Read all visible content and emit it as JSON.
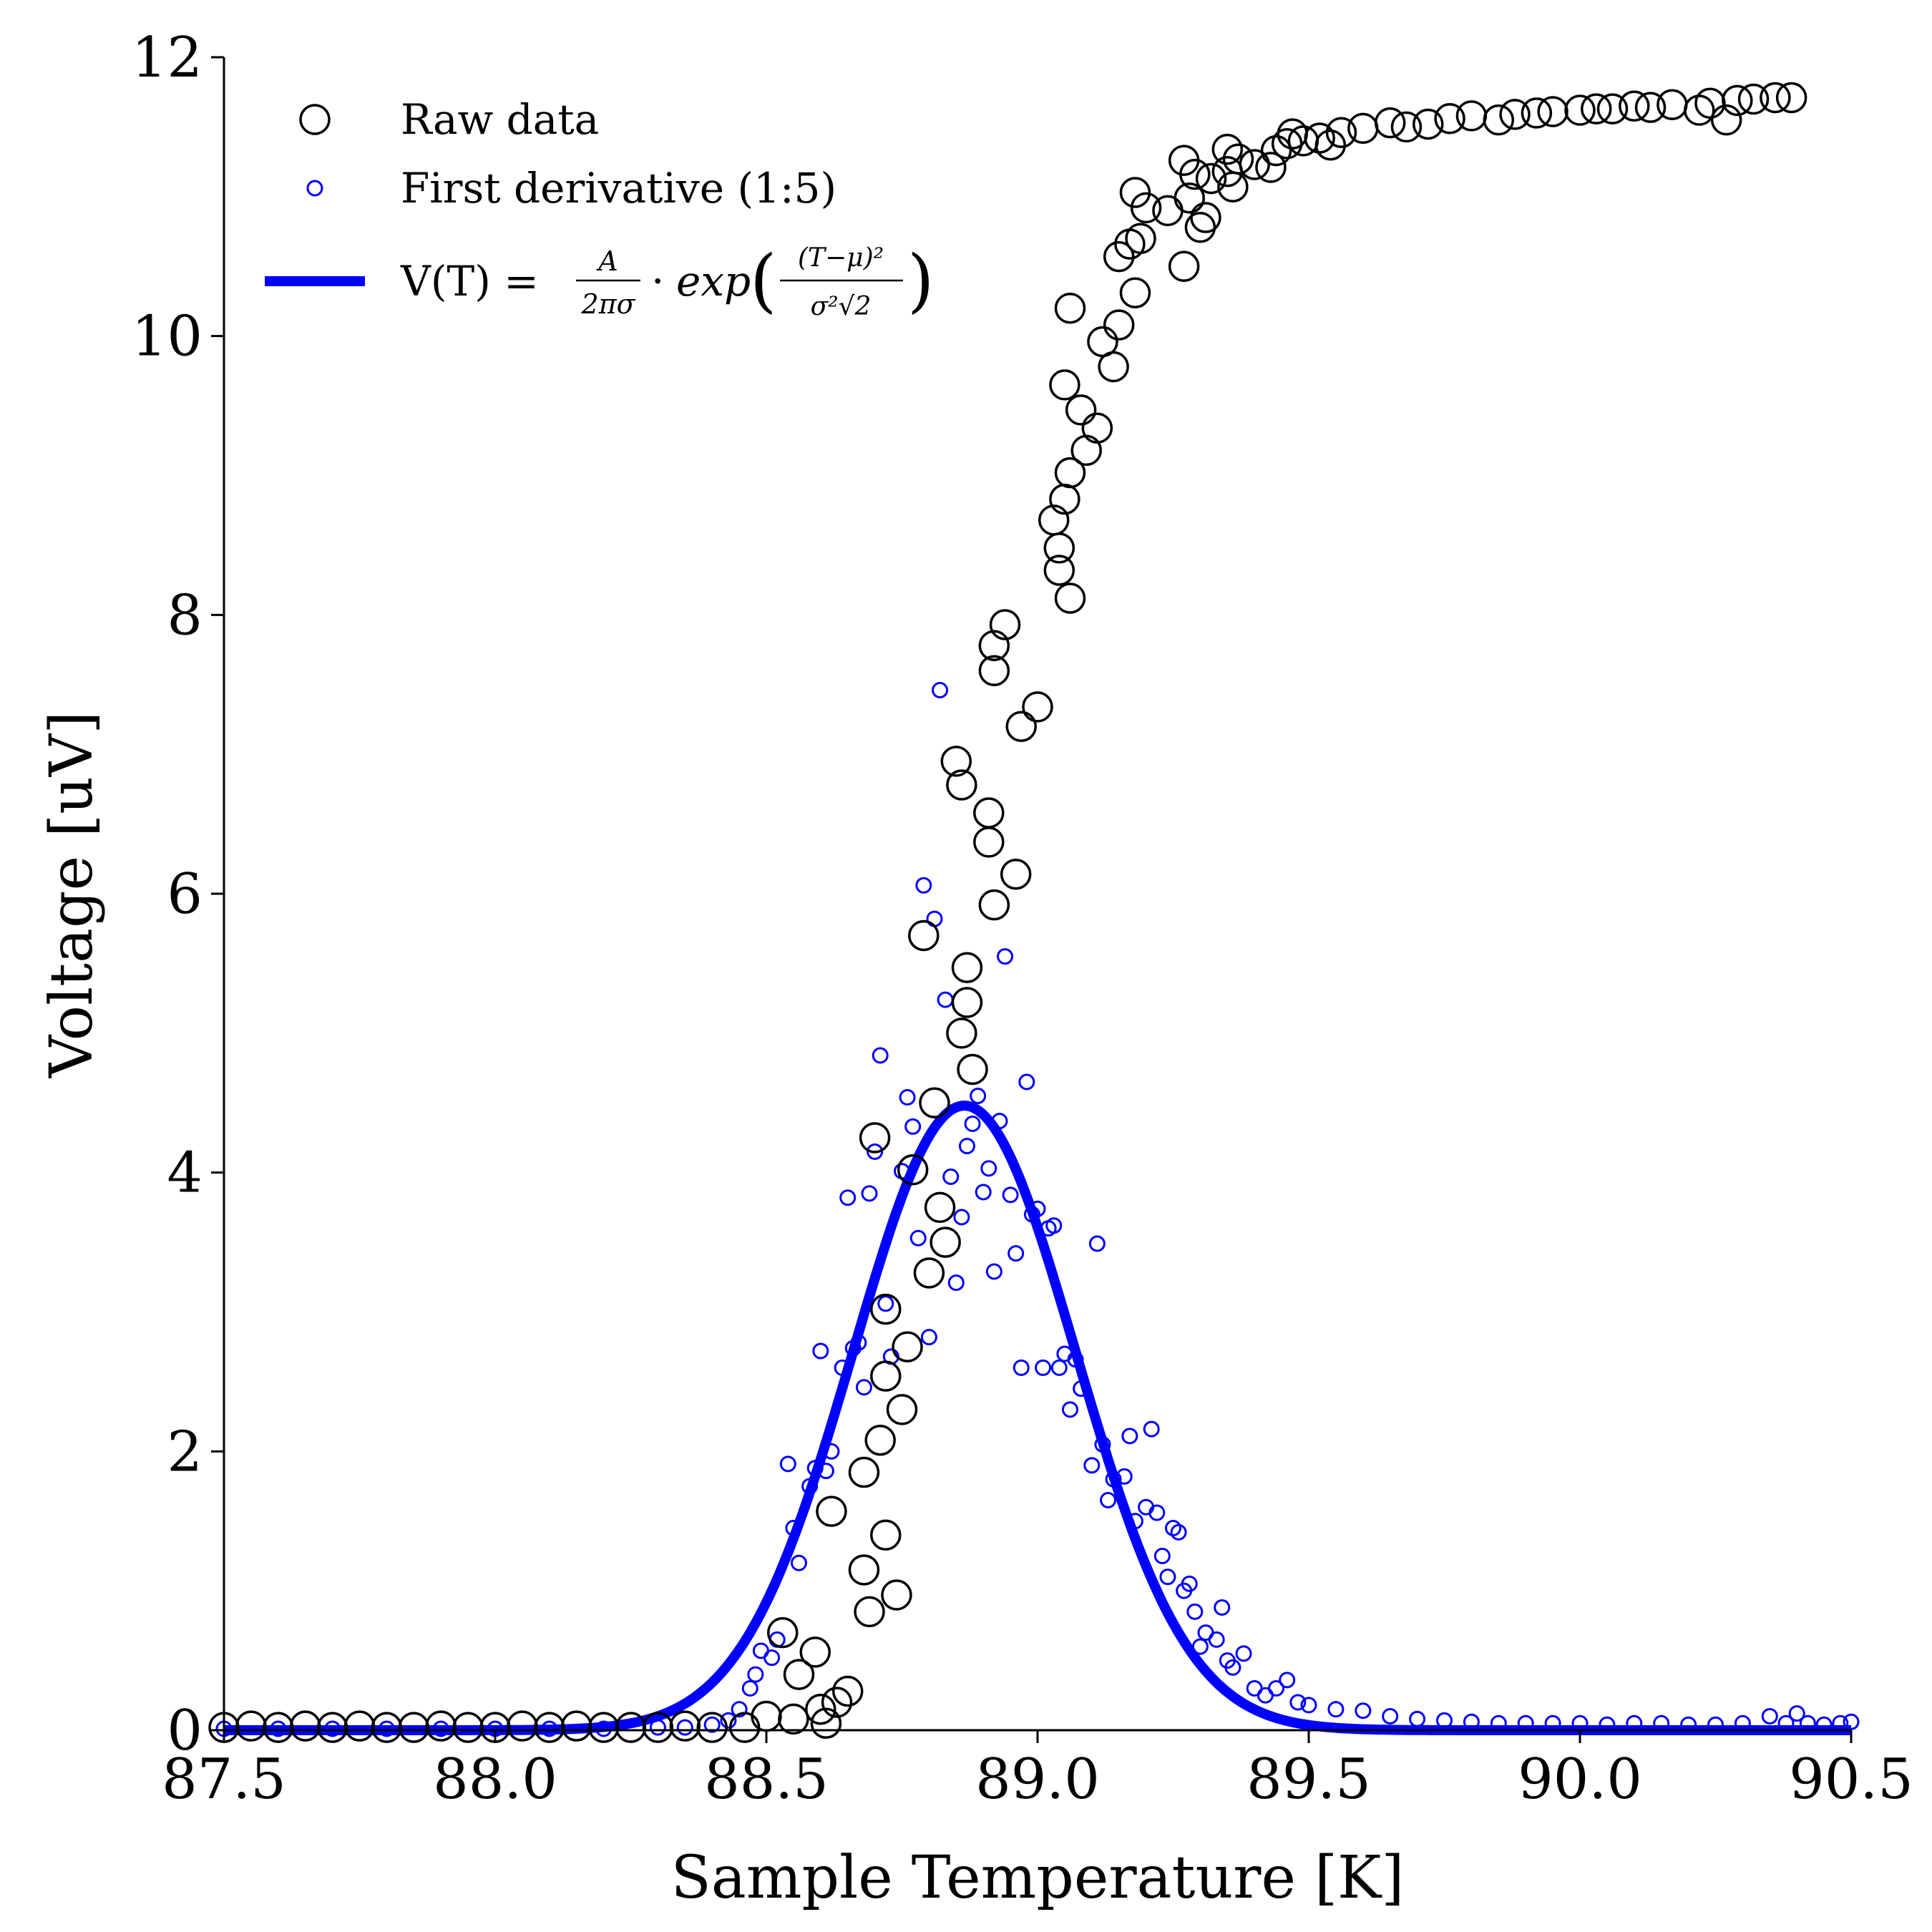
{
  "chart_data": {
    "type": "scatter",
    "xlabel": "Sample Temperature [K]",
    "ylabel": "Voltage [uV]",
    "xlim": [
      87.5,
      90.5
    ],
    "ylim": [
      0,
      12
    ],
    "x_ticks": [
      "87.5",
      "88.0",
      "88.5",
      "89.0",
      "89.5",
      "90.0",
      "90.5"
    ],
    "y_ticks": [
      "0",
      "2",
      "4",
      "6",
      "8",
      "10",
      "12"
    ],
    "grid": false,
    "legend_position": "top-left",
    "colors": {
      "raw": "#000000",
      "derivative": "#0000ff",
      "fit": "#0000ff"
    },
    "series": [
      {
        "name": "Raw data",
        "type": "scatter",
        "marker": "open-circle-large",
        "points": [
          [
            87.5,
            0.02
          ],
          [
            87.55,
            0.03
          ],
          [
            87.6,
            0.02
          ],
          [
            87.65,
            0.03
          ],
          [
            87.7,
            0.02
          ],
          [
            87.75,
            0.03
          ],
          [
            87.8,
            0.02
          ],
          [
            87.85,
            0.02
          ],
          [
            87.9,
            0.03
          ],
          [
            87.95,
            0.02
          ],
          [
            88.0,
            0.02
          ],
          [
            88.05,
            0.03
          ],
          [
            88.1,
            0.02
          ],
          [
            88.15,
            0.03
          ],
          [
            88.2,
            0.02
          ],
          [
            88.25,
            0.02
          ],
          [
            88.3,
            0.02
          ],
          [
            88.35,
            0.03
          ],
          [
            88.4,
            0.02
          ],
          [
            88.46,
            0.02
          ],
          [
            88.5,
            0.1
          ],
          [
            88.53,
            0.7
          ],
          [
            88.55,
            0.08
          ],
          [
            88.56,
            0.4
          ],
          [
            88.59,
            0.56
          ],
          [
            88.6,
            0.15
          ],
          [
            88.61,
            0.05
          ],
          [
            88.63,
            0.2
          ],
          [
            88.65,
            0.28
          ],
          [
            88.62,
            1.57
          ],
          [
            88.68,
            1.85
          ],
          [
            88.68,
            1.15
          ],
          [
            88.69,
            0.85
          ],
          [
            88.7,
            4.25
          ],
          [
            88.71,
            2.08
          ],
          [
            88.72,
            3.02
          ],
          [
            88.72,
            2.54
          ],
          [
            88.72,
            1.4
          ],
          [
            88.74,
            0.97
          ],
          [
            88.75,
            2.3
          ],
          [
            88.76,
            2.75
          ],
          [
            88.77,
            4.02
          ],
          [
            88.79,
            5.7
          ],
          [
            88.8,
            3.28
          ],
          [
            88.81,
            4.5
          ],
          [
            88.82,
            3.75
          ],
          [
            88.83,
            3.5
          ],
          [
            88.85,
            6.95
          ],
          [
            88.86,
            6.78
          ],
          [
            88.87,
            5.47
          ],
          [
            88.87,
            5.22
          ],
          [
            88.86,
            5.0
          ],
          [
            88.88,
            4.74
          ],
          [
            88.91,
            6.58
          ],
          [
            88.91,
            6.37
          ],
          [
            88.92,
            7.78
          ],
          [
            88.92,
            7.6
          ],
          [
            88.92,
            5.92
          ],
          [
            88.94,
            7.93
          ],
          [
            88.96,
            6.14
          ],
          [
            88.97,
            7.2
          ],
          [
            89.0,
            7.34
          ],
          [
            89.03,
            8.68
          ],
          [
            89.04,
            8.48
          ],
          [
            89.04,
            8.32
          ],
          [
            89.05,
            9.65
          ],
          [
            89.05,
            8.83
          ],
          [
            89.06,
            9.02
          ],
          [
            89.06,
            8.12
          ],
          [
            89.06,
            10.2
          ],
          [
            89.08,
            9.47
          ],
          [
            89.09,
            9.18
          ],
          [
            89.11,
            9.34
          ],
          [
            89.12,
            9.96
          ],
          [
            89.14,
            9.78
          ],
          [
            89.15,
            10.57
          ],
          [
            89.15,
            10.08
          ],
          [
            89.17,
            10.66
          ],
          [
            89.18,
            10.31
          ],
          [
            89.18,
            11.03
          ],
          [
            89.19,
            10.7
          ],
          [
            89.2,
            10.92
          ],
          [
            89.24,
            10.9
          ],
          [
            89.27,
            11.26
          ],
          [
            89.27,
            10.5
          ],
          [
            89.28,
            10.99
          ],
          [
            89.29,
            11.16
          ],
          [
            89.3,
            10.78
          ],
          [
            89.31,
            10.85
          ],
          [
            89.32,
            11.13
          ],
          [
            89.35,
            11.34
          ],
          [
            89.35,
            11.18
          ],
          [
            89.36,
            11.07
          ],
          [
            89.37,
            11.27
          ],
          [
            89.4,
            11.23
          ],
          [
            89.43,
            11.21
          ],
          [
            89.44,
            11.33
          ],
          [
            89.46,
            11.38
          ],
          [
            89.47,
            11.45
          ],
          [
            89.49,
            11.4
          ],
          [
            89.52,
            11.42
          ],
          [
            89.54,
            11.37
          ],
          [
            89.56,
            11.46
          ],
          [
            89.6,
            11.49
          ],
          [
            89.65,
            11.53
          ],
          [
            89.68,
            11.5
          ],
          [
            89.72,
            11.52
          ],
          [
            89.76,
            11.56
          ],
          [
            89.8,
            11.58
          ],
          [
            89.85,
            11.55
          ],
          [
            89.88,
            11.59
          ],
          [
            89.92,
            11.6
          ],
          [
            89.95,
            11.61
          ],
          [
            90.0,
            11.62
          ],
          [
            90.03,
            11.63
          ],
          [
            90.06,
            11.63
          ],
          [
            90.1,
            11.65
          ],
          [
            90.13,
            11.64
          ],
          [
            90.17,
            11.66
          ],
          [
            90.22,
            11.62
          ],
          [
            90.24,
            11.67
          ],
          [
            90.27,
            11.55
          ],
          [
            90.29,
            11.69
          ],
          [
            90.32,
            11.7
          ],
          [
            90.36,
            11.71
          ],
          [
            90.39,
            11.71
          ]
        ]
      },
      {
        "name": "First derivative (1:5)",
        "type": "scatter",
        "marker": "open-circle-small",
        "points": [
          [
            87.5,
            0.01
          ],
          [
            87.6,
            0.01
          ],
          [
            87.7,
            0.01
          ],
          [
            87.8,
            0.01
          ],
          [
            87.9,
            0.01
          ],
          [
            88.0,
            0.01
          ],
          [
            88.1,
            0.01
          ],
          [
            88.2,
            0.01
          ],
          [
            88.3,
            0.02
          ],
          [
            88.35,
            0.02
          ],
          [
            88.4,
            0.04
          ],
          [
            88.43,
            0.07
          ],
          [
            88.45,
            0.15
          ],
          [
            88.47,
            0.3
          ],
          [
            88.48,
            0.4
          ],
          [
            88.49,
            0.57
          ],
          [
            88.51,
            0.52
          ],
          [
            88.52,
            0.65
          ],
          [
            88.54,
            1.91
          ],
          [
            88.55,
            1.45
          ],
          [
            88.56,
            1.2
          ],
          [
            88.58,
            1.75
          ],
          [
            88.59,
            1.88
          ],
          [
            88.61,
            1.86
          ],
          [
            88.62,
            2.0
          ],
          [
            88.6,
            2.72
          ],
          [
            88.64,
            2.6
          ],
          [
            88.65,
            3.82
          ],
          [
            88.66,
            2.74
          ],
          [
            88.67,
            2.78
          ],
          [
            88.68,
            2.46
          ],
          [
            88.69,
            3.85
          ],
          [
            88.7,
            4.15
          ],
          [
            88.71,
            4.84
          ],
          [
            88.72,
            3.06
          ],
          [
            88.73,
            2.68
          ],
          [
            88.75,
            4.01
          ],
          [
            88.76,
            4.54
          ],
          [
            88.77,
            4.33
          ],
          [
            88.78,
            3.53
          ],
          [
            88.79,
            6.06
          ],
          [
            88.8,
            2.82
          ],
          [
            88.81,
            5.82
          ],
          [
            88.82,
            7.46
          ],
          [
            88.83,
            5.24
          ],
          [
            88.84,
            3.97
          ],
          [
            88.85,
            3.21
          ],
          [
            88.86,
            3.68
          ],
          [
            88.87,
            4.19
          ],
          [
            88.88,
            4.35
          ],
          [
            88.89,
            4.55
          ],
          [
            88.9,
            3.86
          ],
          [
            88.91,
            4.03
          ],
          [
            88.92,
            3.29
          ],
          [
            88.93,
            4.37
          ],
          [
            88.94,
            5.55
          ],
          [
            88.95,
            3.84
          ],
          [
            88.96,
            3.42
          ],
          [
            88.97,
            2.6
          ],
          [
            88.98,
            4.65
          ],
          [
            88.99,
            3.7
          ],
          [
            89.0,
            3.74
          ],
          [
            89.01,
            2.6
          ],
          [
            89.02,
            3.6
          ],
          [
            89.03,
            3.62
          ],
          [
            89.04,
            2.6
          ],
          [
            89.05,
            2.7
          ],
          [
            89.06,
            2.3
          ],
          [
            89.07,
            2.66
          ],
          [
            89.08,
            2.45
          ],
          [
            89.1,
            1.9
          ],
          [
            89.11,
            3.49
          ],
          [
            89.12,
            2.05
          ],
          [
            89.13,
            1.65
          ],
          [
            89.14,
            1.8
          ],
          [
            89.16,
            1.82
          ],
          [
            89.17,
            2.11
          ],
          [
            89.18,
            1.5
          ],
          [
            89.2,
            1.6
          ],
          [
            89.21,
            2.16
          ],
          [
            89.22,
            1.56
          ],
          [
            89.23,
            1.25
          ],
          [
            89.24,
            1.1
          ],
          [
            89.25,
            1.45
          ],
          [
            89.26,
            1.42
          ],
          [
            89.27,
            1.0
          ],
          [
            89.28,
            1.05
          ],
          [
            89.29,
            0.85
          ],
          [
            89.3,
            0.6
          ],
          [
            89.31,
            0.7
          ],
          [
            89.33,
            0.65
          ],
          [
            89.34,
            0.88
          ],
          [
            89.35,
            0.5
          ],
          [
            89.36,
            0.45
          ],
          [
            89.38,
            0.55
          ],
          [
            89.4,
            0.3
          ],
          [
            89.42,
            0.25
          ],
          [
            89.44,
            0.3
          ],
          [
            89.46,
            0.36
          ],
          [
            89.48,
            0.2
          ],
          [
            89.5,
            0.18
          ],
          [
            89.55,
            0.15
          ],
          [
            89.6,
            0.14
          ],
          [
            89.65,
            0.1
          ],
          [
            89.7,
            0.08
          ],
          [
            89.75,
            0.07
          ],
          [
            89.8,
            0.06
          ],
          [
            89.85,
            0.05
          ],
          [
            89.9,
            0.05
          ],
          [
            89.95,
            0.05
          ],
          [
            90.0,
            0.05
          ],
          [
            90.05,
            0.04
          ],
          [
            90.1,
            0.05
          ],
          [
            90.15,
            0.05
          ],
          [
            90.2,
            0.04
          ],
          [
            90.25,
            0.04
          ],
          [
            90.3,
            0.05
          ],
          [
            90.35,
            0.1
          ],
          [
            90.38,
            0.05
          ],
          [
            90.4,
            0.12
          ],
          [
            90.42,
            0.05
          ],
          [
            90.45,
            0.04
          ],
          [
            90.48,
            0.05
          ],
          [
            90.5,
            0.06
          ]
        ]
      },
      {
        "name": "V(T) = A/(2πσ) · exp((T−μ)²/(σ²√2))",
        "type": "line",
        "model": "gaussian",
        "params": {
          "amplitude": 4.48,
          "mu": 88.865,
          "sigma": 0.205
        },
        "x_range": [
          87.5,
          90.5
        ]
      }
    ]
  }
}
